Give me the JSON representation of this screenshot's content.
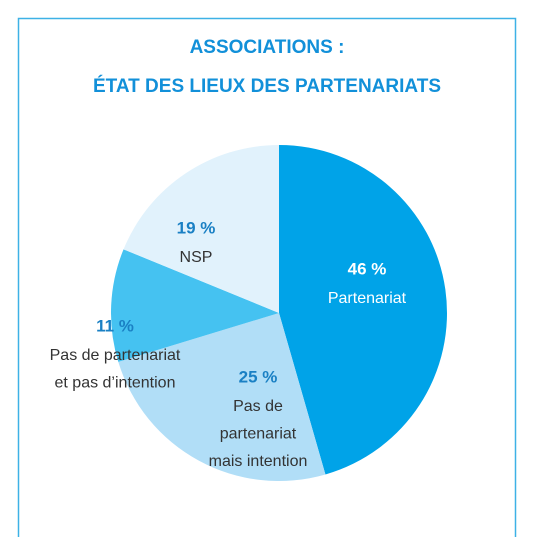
{
  "chart_data": {
    "type": "pie",
    "title": [
      "ASSOCIATIONS :",
      "ÉTAT DES LIEUX DES PARTENARIATS"
    ],
    "categories": [
      [
        "Partenariat"
      ],
      [
        "Pas de",
        "partenariat",
        "mais intention"
      ],
      [
        "Pas de partenariat",
        "et pas d’intention"
      ],
      [
        "NSP"
      ]
    ],
    "values": [
      46,
      25,
      11,
      19
    ],
    "value_labels": [
      "46 %",
      "25 %",
      "11 %",
      "19 %"
    ],
    "colors": [
      "#00a3e8",
      "#b1def7",
      "#45c2f1",
      "#e1f2fc"
    ]
  }
}
